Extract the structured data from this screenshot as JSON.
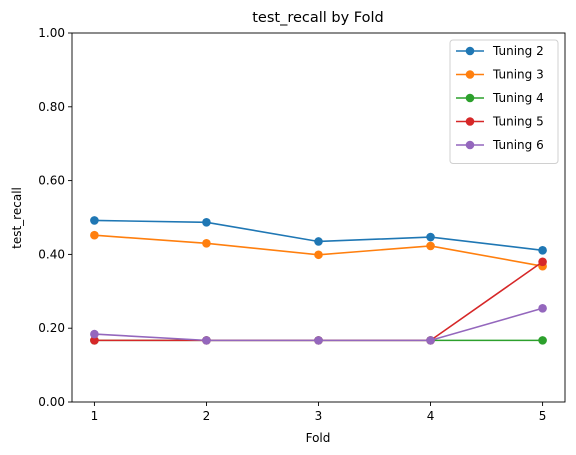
{
  "chart_data": {
    "type": "line",
    "title": "test_recall by Fold",
    "xlabel": "Fold",
    "ylabel": "test_recall",
    "x": [
      1,
      2,
      3,
      4,
      5
    ],
    "x_ticks": [
      "1",
      "2",
      "3",
      "4",
      "5"
    ],
    "xlim": [
      0.8,
      5.2
    ],
    "ylim": [
      0.0,
      1.0
    ],
    "y_ticks": [
      "0.00",
      "0.20",
      "0.40",
      "0.60",
      "0.80",
      "1.00"
    ],
    "y_tick_values": [
      0.0,
      0.2,
      0.4,
      0.6,
      0.8,
      1.0
    ],
    "grid": false,
    "legend_position": "top-right",
    "series": [
      {
        "name": "Tuning 2",
        "color": "#1f77b4",
        "values": [
          0.492,
          0.487,
          0.435,
          0.447,
          0.411
        ]
      },
      {
        "name": "Tuning 3",
        "color": "#ff7f0e",
        "values": [
          0.452,
          0.43,
          0.399,
          0.423,
          0.368
        ]
      },
      {
        "name": "Tuning 4",
        "color": "#2ca02c",
        "values": [
          0.167,
          0.167,
          0.167,
          0.167,
          0.167
        ]
      },
      {
        "name": "Tuning 5",
        "color": "#d62728",
        "values": [
          0.167,
          0.167,
          0.167,
          0.167,
          0.38
        ]
      },
      {
        "name": "Tuning 6",
        "color": "#9467bd",
        "values": [
          0.184,
          0.167,
          0.167,
          0.167,
          0.254
        ]
      }
    ]
  }
}
